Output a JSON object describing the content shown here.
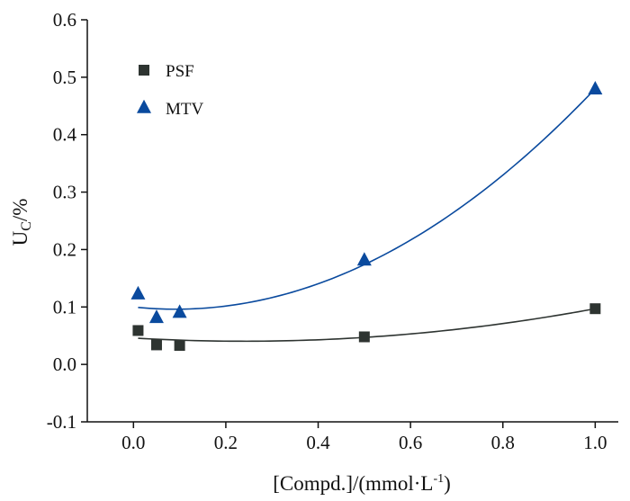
{
  "chart_data": {
    "type": "scatter",
    "xlabel": {
      "main": "[Compd.]/(mmol·L",
      "sup": "-1",
      "close": ")"
    },
    "ylabel": {
      "main": "U",
      "sub": "C",
      "rest": "/%"
    },
    "xlim": [
      -0.1,
      1.05
    ],
    "ylim": [
      -0.1,
      0.6
    ],
    "x_ticks": [
      "0.0",
      "0.2",
      "0.4",
      "0.6",
      "0.8",
      "1.0"
    ],
    "y_ticks": [
      "-0.1",
      "0.0",
      "0.1",
      "0.2",
      "0.3",
      "0.4",
      "0.5",
      "0.6"
    ],
    "legend_position": "top-left",
    "series": [
      {
        "name": "PSF",
        "marker": "square",
        "color": "#2e3431",
        "points": [
          {
            "x": 0.01,
            "y": 0.059
          },
          {
            "x": 0.05,
            "y": 0.034
          },
          {
            "x": 0.1,
            "y": 0.033
          },
          {
            "x": 0.5,
            "y": 0.048
          },
          {
            "x": 1.0,
            "y": 0.097
          }
        ],
        "fit": {
          "x_start": 0.01,
          "x_end": 1.0,
          "coef": [
            0.046,
            -0.047,
            0.098
          ]
        }
      },
      {
        "name": "MTV",
        "marker": "triangle",
        "color": "#0a4a9e",
        "points": [
          {
            "x": 0.01,
            "y": 0.122
          },
          {
            "x": 0.05,
            "y": 0.081
          },
          {
            "x": 0.1,
            "y": 0.09
          },
          {
            "x": 0.5,
            "y": 0.181
          },
          {
            "x": 1.0,
            "y": 0.479
          }
        ],
        "fit": {
          "x_start": 0.01,
          "x_end": 1.0,
          "coef": [
            0.1,
            -0.085,
            0.465
          ]
        }
      }
    ]
  }
}
